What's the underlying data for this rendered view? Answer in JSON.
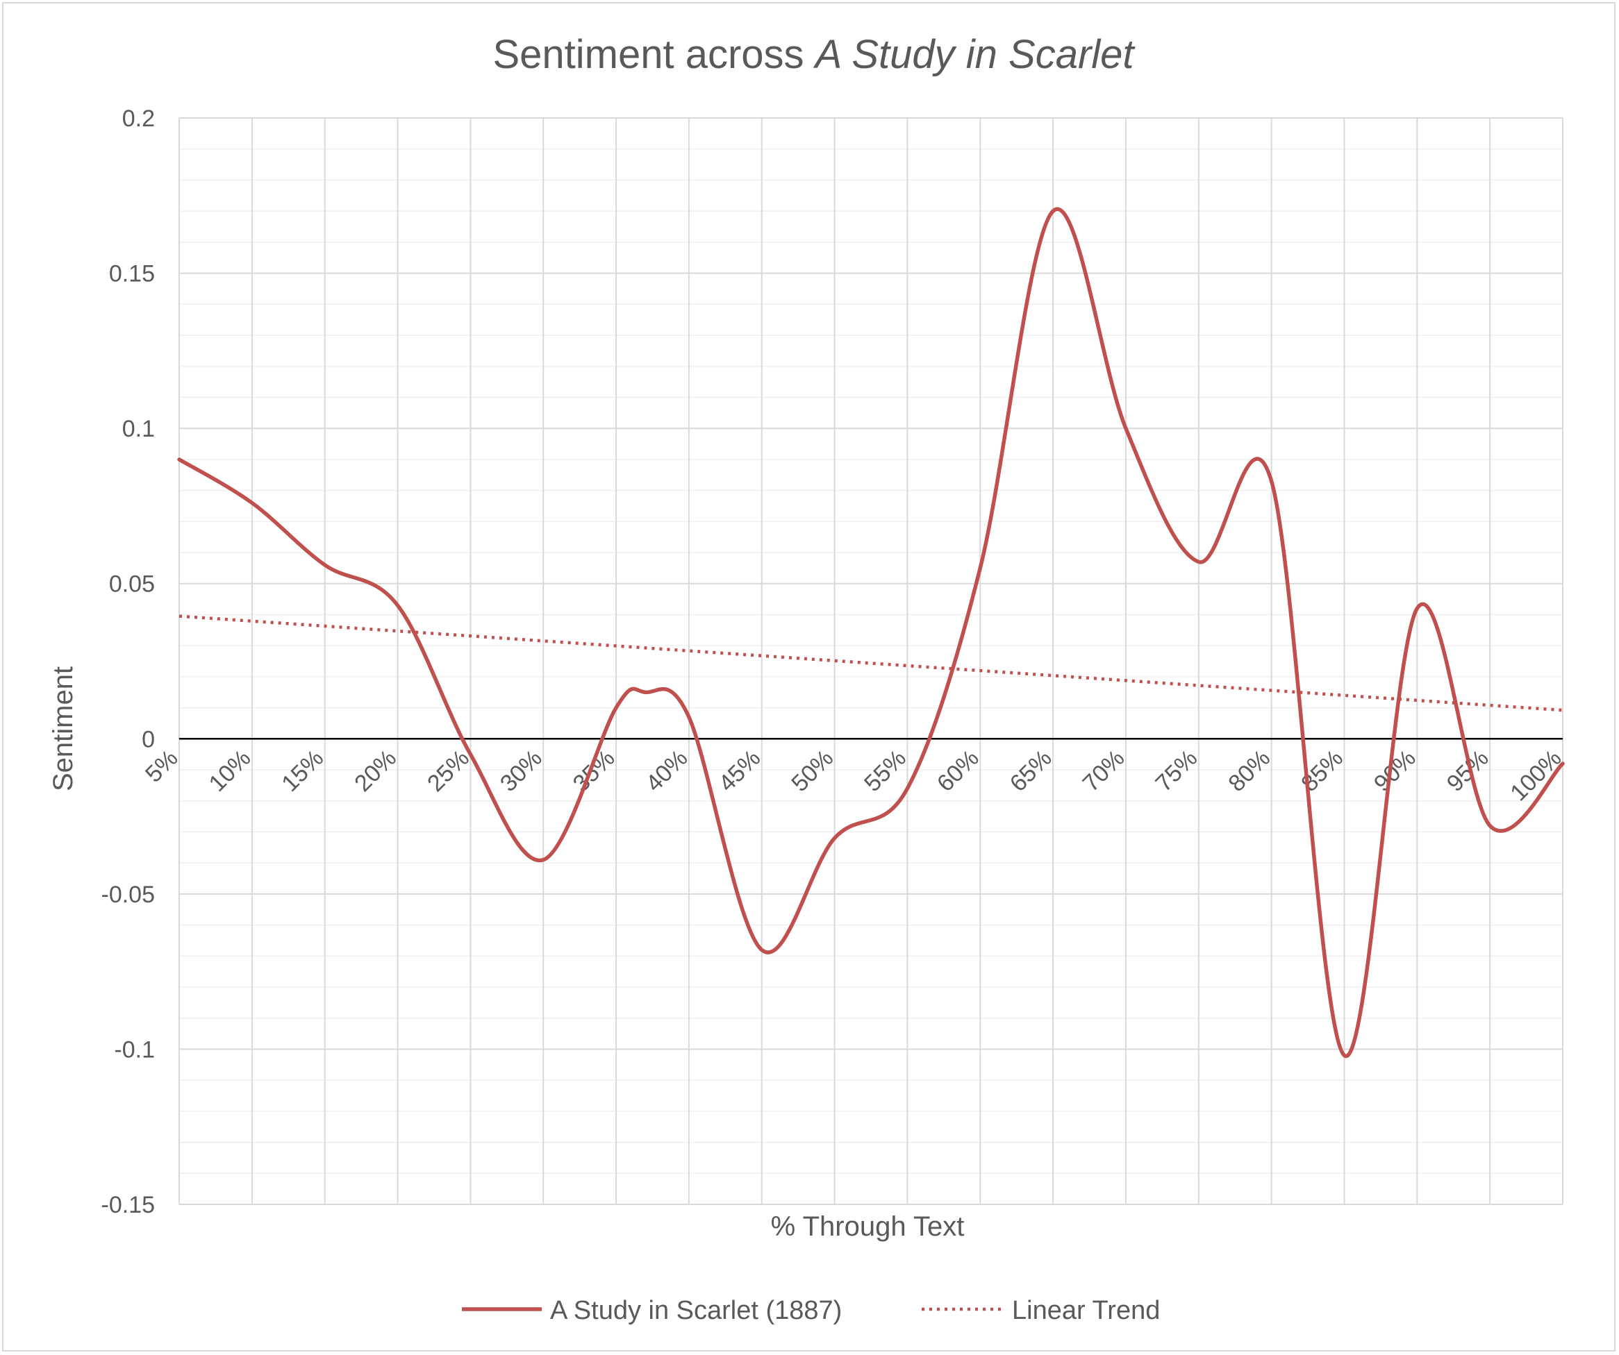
{
  "chart_data": {
    "type": "line",
    "title": "Sentiment across A Study in Scarlet",
    "title_parts": {
      "prefix": "Sentiment across ",
      "italic": "A Study in Scarlet"
    },
    "xlabel": "% Through Text",
    "ylabel": "Sentiment",
    "x_categories": [
      "5%",
      "10%",
      "15%",
      "20%",
      "25%",
      "30%",
      "35%",
      "40%",
      "45%",
      "50%",
      "55%",
      "60%",
      "65%",
      "70%",
      "75%",
      "80%",
      "85%",
      "90%",
      "95%",
      "100%"
    ],
    "y_ticks": [
      "0.2",
      "0.15",
      "0.1",
      "0.05",
      "0",
      "-0.05",
      "-0.1",
      "-0.15"
    ],
    "ylim": [
      -0.15,
      0.2
    ],
    "grid": true,
    "legend_position": "bottom",
    "series": [
      {
        "name": "A Study in Scarlet (1887)",
        "style": "solid",
        "color": "#c0504d",
        "x": [
          5,
          10,
          15,
          20,
          25,
          30,
          35,
          37,
          40,
          45,
          50,
          55,
          60,
          65,
          70,
          75,
          80,
          85,
          90,
          95,
          100
        ],
        "y": [
          0.09,
          0.076,
          0.056,
          0.043,
          -0.005,
          -0.039,
          0.01,
          0.015,
          0.007,
          -0.068,
          -0.032,
          -0.016,
          0.055,
          0.17,
          0.1,
          0.057,
          0.083,
          -0.102,
          0.042,
          -0.028,
          -0.008
        ]
      },
      {
        "name": "Linear Trend",
        "style": "dotted",
        "color": "#c0504d",
        "x": [
          5,
          100
        ],
        "y": [
          0.0395,
          0.0092
        ]
      }
    ]
  }
}
